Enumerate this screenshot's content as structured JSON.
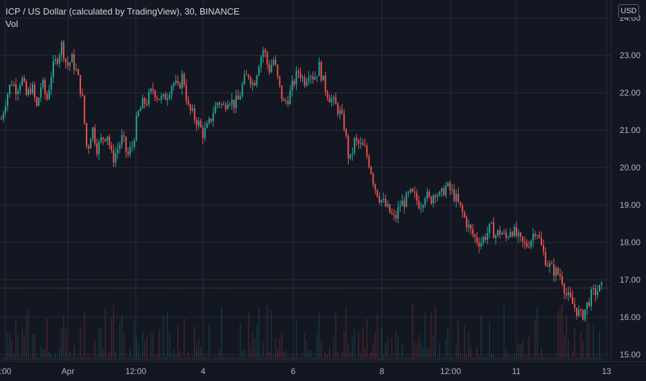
{
  "legend": {
    "symbol_line": "ICP / US Dollar (calculated by TradingView), 30, BINANCE",
    "volume_label": "Vol"
  },
  "currency_button": "USD",
  "colors": {
    "background": "#131722",
    "grid": "#2a2e39",
    "up": "#26a69a",
    "down": "#ef5350",
    "last_price_line": "#ef5350",
    "text": "#b2b5be"
  },
  "chart_data": {
    "type": "candlestick",
    "title": "ICP / US Dollar (calculated by TradingView), 30, BINANCE",
    "ylim": [
      14.95,
      24.1
    ],
    "y_ticks": [
      "15.00",
      "16.00",
      "17.00",
      "18.00",
      "19.00",
      "20.00",
      "21.00",
      "22.00",
      "23.00",
      "24.00"
    ],
    "x_tick_labels": [
      ":00",
      "Apr",
      "12:00",
      "4",
      "6",
      "8",
      "12:00",
      "11",
      "13"
    ],
    "last_price": 16.78,
    "grid": true,
    "legend_position": "top-left",
    "price_path_close": [
      21.3,
      21.9,
      22.3,
      22.1,
      22.4,
      21.9,
      22.2,
      21.6,
      22.3,
      21.8,
      22.6,
      22.9,
      23.3,
      22.7,
      22.9,
      22.5,
      21.9,
      20.4,
      21.1,
      20.5,
      20.8,
      20.9,
      20.2,
      20.5,
      20.8,
      20.3,
      20.6,
      21.4,
      21.7,
      21.8,
      22.1,
      21.9,
      21.8,
      22.0,
      22.3,
      22.1,
      22.5,
      21.6,
      21.4,
      21.2,
      20.9,
      21.1,
      21.5,
      21.8,
      21.6,
      21.9,
      21.7,
      21.8,
      22.3,
      22.5,
      22.2,
      22.8,
      23.2,
      22.6,
      22.9,
      22.2,
      21.7,
      21.9,
      22.3,
      22.6,
      22.3,
      22.6,
      22.4,
      22.7,
      22.2,
      21.9,
      21.7,
      21.5,
      21.1,
      20.1,
      20.7,
      20.6,
      20.5,
      20.1,
      19.5,
      19.2,
      19.0,
      18.8,
      18.6,
      19.0,
      19.1,
      19.3,
      19.2,
      19.0,
      19.3,
      19.1,
      19.4,
      19.2,
      19.5,
      19.4,
      19.2,
      18.9,
      18.6,
      18.3,
      18.1,
      18.0,
      18.2,
      18.4,
      18.2,
      18.3,
      18.1,
      18.4,
      18.2,
      18.0,
      17.9,
      18.1,
      18.4,
      17.9,
      17.5,
      17.3,
      17.2,
      17.1,
      16.6,
      16.4,
      16.2,
      16.0,
      16.3,
      16.6,
      16.7,
      16.78
    ],
    "volume_note": "volume histogram bars at bottom"
  }
}
